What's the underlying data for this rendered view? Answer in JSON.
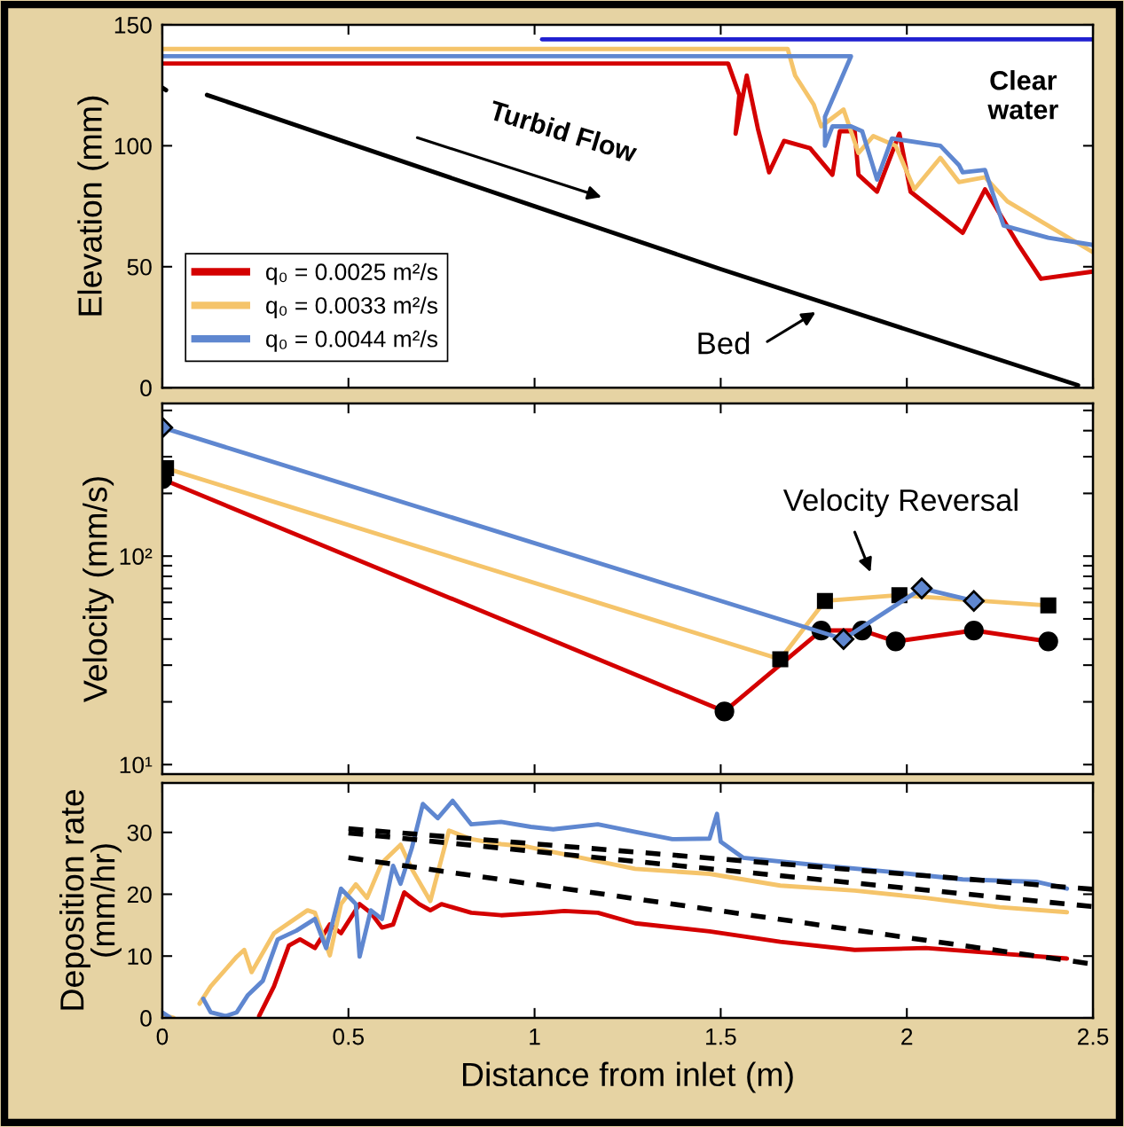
{
  "chart_data": [
    {
      "type": "line",
      "ylabel": "Elevation (mm)",
      "xlim": [
        0,
        2.5
      ],
      "xticks": [
        0,
        0.5,
        1,
        1.5,
        2,
        2.5
      ],
      "ylim": [
        0,
        150
      ],
      "yticks": [
        0,
        50,
        100,
        150
      ],
      "tick_labels": "y",
      "legend": "bottom left",
      "annotations": [
        "Turbid Flow",
        "Bed",
        "Clear\nwater"
      ],
      "series": [
        {
          "name": "q₀ = 0.0025 m²/s",
          "color": "#d40000",
          "x": [
            0,
            1.52,
            1.55,
            1.54,
            1.57,
            1.6,
            1.63,
            1.67,
            1.74,
            1.8,
            1.82,
            1.86,
            1.87,
            1.92,
            1.98,
            2.01,
            2.15,
            2.21,
            2.3,
            2.36,
            2.5
          ],
          "values": [
            134,
            134,
            121,
            105,
            129,
            107,
            89,
            102,
            99,
            88,
            106,
            106,
            88,
            81,
            105,
            81,
            64,
            82,
            59,
            45,
            48
          ]
        },
        {
          "name": "q₀ = 0.0033 m²/s",
          "color": "#f5c46a",
          "x": [
            0,
            1.68,
            1.7,
            1.75,
            1.77,
            1.83,
            1.87,
            1.91,
            1.97,
            2.02,
            2.09,
            2.14,
            2.21,
            2.27,
            2.5
          ],
          "values": [
            140,
            140,
            129,
            117,
            108,
            115,
            97,
            104,
            100,
            82,
            95,
            85,
            87,
            77,
            56
          ]
        },
        {
          "name": "q₀ = 0.0044 m²/s",
          "color": "#5f87d0",
          "x": [
            0,
            1.85,
            1.78,
            1.78,
            1.8,
            1.85,
            1.88,
            1.92,
            1.96,
            2.09,
            2.14,
            2.15,
            2.21,
            2.26,
            2.38,
            2.5
          ],
          "values": [
            137,
            137,
            112,
            100,
            108,
            108,
            106,
            86,
            103,
            100,
            92,
            89,
            90,
            67,
            62,
            59
          ]
        },
        {
          "color": "#000000",
          "x": [
            0,
            0.01,
            0.05,
            0.12,
            0.56,
            1.0,
            1.5,
            2.0,
            2.46
          ],
          "values": [
            124,
            123,
            null,
            121,
            98,
            75,
            49,
            24,
            1
          ]
        },
        {
          "color": "#2020d0",
          "x": [
            1.02,
            2.5
          ],
          "values": [
            144,
            144
          ]
        }
      ]
    },
    {
      "type": "line",
      "ylabel": "Velocity (mm/s)",
      "log": "y",
      "xlim": [
        0,
        2.5
      ],
      "xticks": [
        0,
        0.5,
        1,
        1.5,
        2,
        2.5
      ],
      "ylim": [
        9,
        540
      ],
      "yticks": [
        {
          "value": 10,
          "label": "10¹"
        },
        {
          "value": 20,
          "label": null
        },
        {
          "value": 30,
          "label": null
        },
        {
          "value": 40,
          "label": null
        },
        {
          "value": 50,
          "label": null
        },
        {
          "value": 60,
          "label": null
        },
        {
          "value": 70,
          "label": null
        },
        {
          "value": 80,
          "label": null
        },
        {
          "value": 90,
          "label": null
        },
        {
          "value": 100,
          "label": "10²"
        },
        {
          "value": 200,
          "label": null
        },
        {
          "value": 300,
          "label": null
        },
        {
          "value": 400,
          "label": null
        },
        {
          "value": 500,
          "label": null
        }
      ],
      "tick_labels": "y",
      "annotations": [
        "Velocity Reversal"
      ],
      "series": [
        {
          "color": "#d40000",
          "marker": "circle",
          "x": [
            0,
            1.51,
            1.77,
            1.88,
            1.97,
            2.18,
            2.38
          ],
          "values": [
            234,
            18,
            44,
            44,
            39,
            44,
            39
          ]
        },
        {
          "color": "#f5c46a",
          "marker": "square",
          "x": [
            0.01,
            1.66,
            1.78,
            1.98,
            2.38
          ],
          "values": [
            264,
            32,
            61,
            65,
            58
          ]
        },
        {
          "color": "#5f87d0",
          "marker": "diamond",
          "x": [
            0,
            1.83,
            2.04,
            2.18
          ],
          "values": [
            414,
            40,
            70,
            61
          ]
        }
      ]
    },
    {
      "type": "line",
      "ylabel": "Deposition rate\n(mm/hr)",
      "xlabel": "Distance from inlet (m)",
      "xlim": [
        0,
        2.5
      ],
      "xticks": [
        0,
        0.5,
        1,
        1.5,
        2,
        2.5
      ],
      "ylim": [
        0,
        38
      ],
      "yticks": [
        0,
        10,
        20,
        30
      ],
      "series": [
        {
          "color": "#d40000",
          "x": [
            0.26,
            0.3,
            0.34,
            0.37,
            0.41,
            0.45,
            0.48,
            0.53,
            0.56,
            0.59,
            0.62,
            0.65,
            0.69,
            0.72,
            0.75,
            0.83,
            0.91,
            1.02,
            1.08,
            1.17,
            1.27,
            1.47,
            1.66,
            1.86,
            2.05,
            2.25,
            2.43
          ],
          "values": [
            0.3,
            5.1,
            11.7,
            12.7,
            11.3,
            15.1,
            13.7,
            18.4,
            17,
            14.6,
            15.1,
            20.3,
            18.4,
            17.4,
            18.4,
            17,
            16.6,
            17,
            17.3,
            17,
            15.3,
            14,
            12.3,
            11,
            11.3,
            10.4,
            9.6
          ]
        },
        {
          "color": "#f5c46a",
          "x": [
            0,
            0.03,
            0.06,
            0.1,
            0.13,
            0.2,
            0.22,
            0.24,
            0.3,
            0.39,
            0.41,
            0.45,
            0.48,
            0.52,
            0.55,
            0.59,
            0.64,
            0.67,
            0.72,
            0.77,
            0.83,
            0.91,
            0.98,
            1.27,
            1.47,
            1.66,
            1.86,
            2.05,
            2.25,
            2.43
          ],
          "values": [
            0.5,
            0,
            null,
            2.3,
            5.1,
            9.9,
            11,
            7.4,
            13.7,
            17.4,
            17,
            10.1,
            18.4,
            21.6,
            19.4,
            25.1,
            28,
            24.1,
            18.9,
            30.3,
            28.9,
            28.1,
            27.7,
            24.1,
            23.3,
            21.4,
            20.6,
            19.4,
            17.9,
            17.1
          ]
        },
        {
          "color": "#5f87d0",
          "x": [
            0,
            0.02,
            0.06,
            0.11,
            0.13,
            0.17,
            0.2,
            0.23,
            0.27,
            0.31,
            0.36,
            0.41,
            0.44,
            0.48,
            0.52,
            0.53,
            0.56,
            0.59,
            0.62,
            0.64,
            0.67,
            0.7,
            0.74,
            0.78,
            0.83,
            0.91,
            0.99,
            1.05,
            1.17,
            1.27,
            1.37,
            1.47,
            1.49,
            1.5,
            1.56,
            1.76,
            1.96,
            2.15,
            2.35,
            2.43
          ],
          "values": [
            0.9,
            0.1,
            null,
            3.1,
            0.9,
            0.3,
            0.9,
            3.7,
            6,
            12.7,
            14.1,
            16,
            11.3,
            20.9,
            18.4,
            9.9,
            17.4,
            16,
            24.6,
            21.7,
            27.4,
            34.6,
            32.3,
            35.1,
            31.3,
            31.7,
            30.9,
            30.5,
            31.3,
            30.1,
            28.9,
            29,
            33,
            28.5,
            25.9,
            24.7,
            23.6,
            22.4,
            22,
            20.9
          ]
        },
        {
          "color": "#000000",
          "line_style": "dashed",
          "x": [
            0.5,
            2.5
          ],
          "values": [
            30.6,
            20.8
          ]
        },
        {
          "color": "#000000",
          "line_style": "dashed",
          "x": [
            0.5,
            2.5
          ],
          "values": [
            29.9,
            18.0
          ]
        },
        {
          "color": "#000000",
          "line_style": "dashed",
          "x": [
            0.5,
            2.5
          ],
          "values": [
            25.9,
            8.7
          ]
        }
      ]
    }
  ]
}
